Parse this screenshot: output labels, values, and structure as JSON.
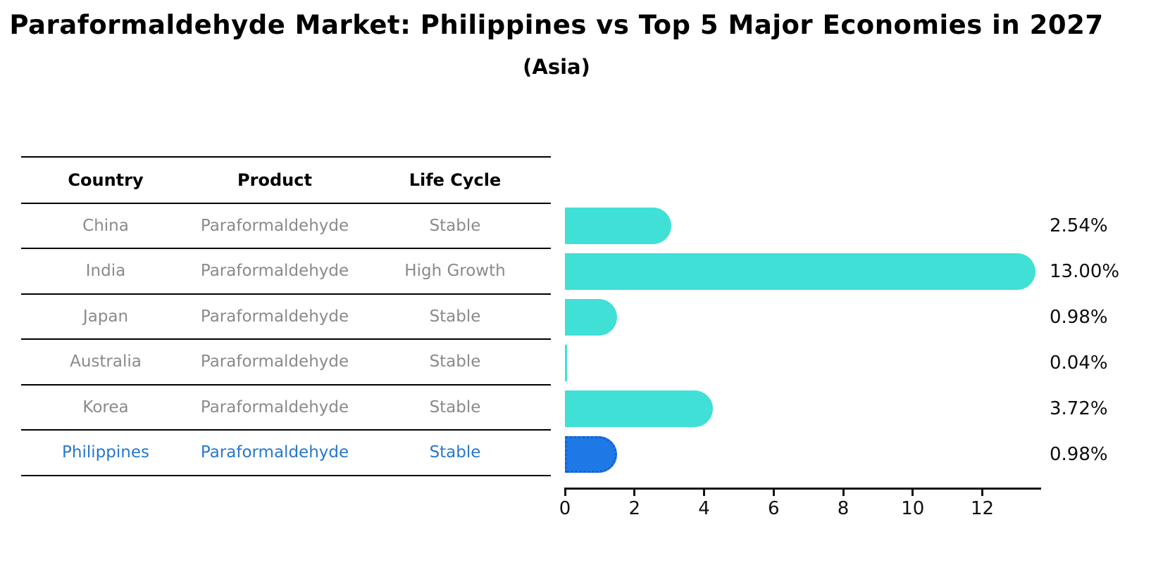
{
  "header": {
    "title": "Paraformaldehyde Market: Philippines vs Top 5 Major Economies in 2027",
    "subtitle": "(Asia)"
  },
  "table": {
    "headers": [
      "Country",
      "Product",
      "Life Cycle"
    ],
    "rows": [
      {
        "country": "China",
        "product": "Paraformaldehyde",
        "life_cycle": "Stable",
        "highlight": false
      },
      {
        "country": "India",
        "product": "Paraformaldehyde",
        "life_cycle": "High Growth",
        "highlight": false
      },
      {
        "country": "Japan",
        "product": "Paraformaldehyde",
        "life_cycle": "Stable",
        "highlight": false
      },
      {
        "country": "Australia",
        "product": "Paraformaldehyde",
        "life_cycle": "Stable",
        "highlight": false
      },
      {
        "country": "Korea",
        "product": "Paraformaldehyde",
        "life_cycle": "Stable",
        "highlight": false
      },
      {
        "country": "Philippines",
        "product": "Paraformaldehyde",
        "life_cycle": "Stable",
        "highlight": true
      }
    ]
  },
  "chart_data": {
    "type": "bar",
    "orientation": "horizontal",
    "categories": [
      "China",
      "India",
      "Japan",
      "Australia",
      "Korea",
      "Philippines"
    ],
    "values": [
      2.54,
      13.0,
      0.98,
      0.04,
      3.72,
      0.98
    ],
    "value_labels": [
      "2.54%",
      "13.00%",
      "0.98%",
      "0.04%",
      "3.72%",
      "0.98%"
    ],
    "highlight_index": 5,
    "xlabel": "",
    "ylabel": "",
    "xlim": [
      0,
      13.69
    ],
    "xticks": [
      0,
      2,
      4,
      6,
      8,
      10,
      12
    ],
    "xtick_labels": [
      "0",
      "2",
      "4",
      "6",
      "8",
      "10",
      "12"
    ],
    "grid": false,
    "legend": false
  },
  "colors": {
    "bar": "#40E0D6",
    "highlight_bar": "#1E78E5",
    "highlight_border": "#1160d2",
    "highlight_text": "#2878c8",
    "table_text": "#8a8a8a",
    "axis": "#111111"
  }
}
